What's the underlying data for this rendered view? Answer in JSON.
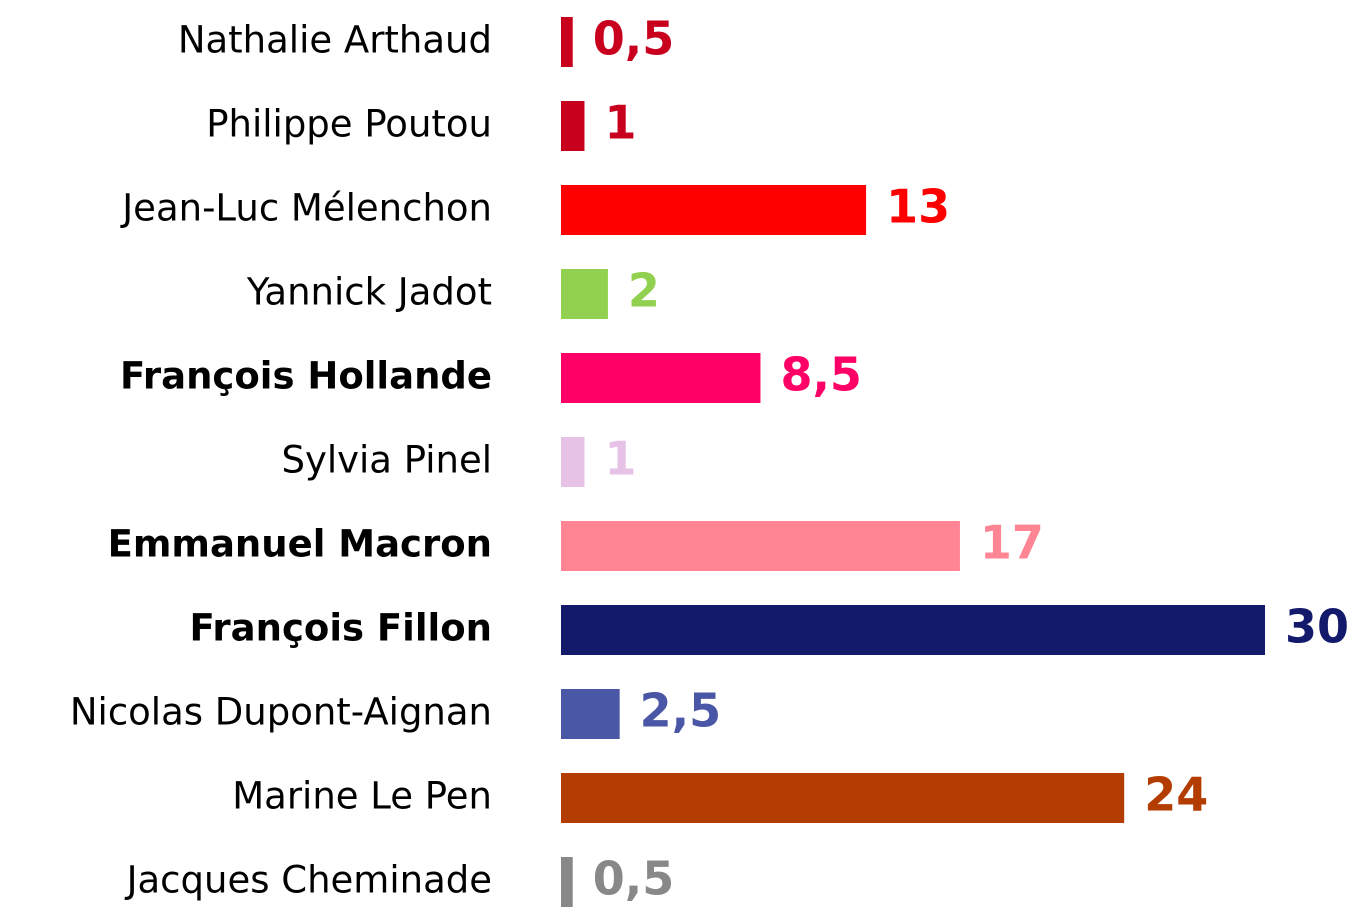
{
  "chart_data": {
    "type": "bar",
    "orientation": "horizontal",
    "categories": [
      "Nathalie Arthaud",
      "Philippe Poutou",
      "Jean-Luc Mélenchon",
      "Yannick Jadot",
      "François Hollande",
      "Sylvia Pinel",
      "Emmanuel Macron",
      "François Fillon",
      "Nicolas Dupont-Aignan",
      "Marine Le Pen",
      "Jacques Cheminade"
    ],
    "values": [
      0.5,
      1,
      13,
      2,
      8.5,
      1,
      17,
      30,
      2.5,
      24,
      0.5
    ],
    "value_labels": [
      "0,5",
      "1",
      "13",
      "2",
      "8,5",
      "1",
      "17",
      "30",
      "2,5",
      "24",
      "0,5"
    ],
    "colors": [
      "#c8001e",
      "#c8001e",
      "#ff0000",
      "#92d050",
      "#ff0066",
      "#e6c3e6",
      "#ff8595",
      "#141a6b",
      "#4a56a6",
      "#b33c00",
      "#888888"
    ],
    "bold_categories": [
      4,
      6,
      7
    ]
  }
}
